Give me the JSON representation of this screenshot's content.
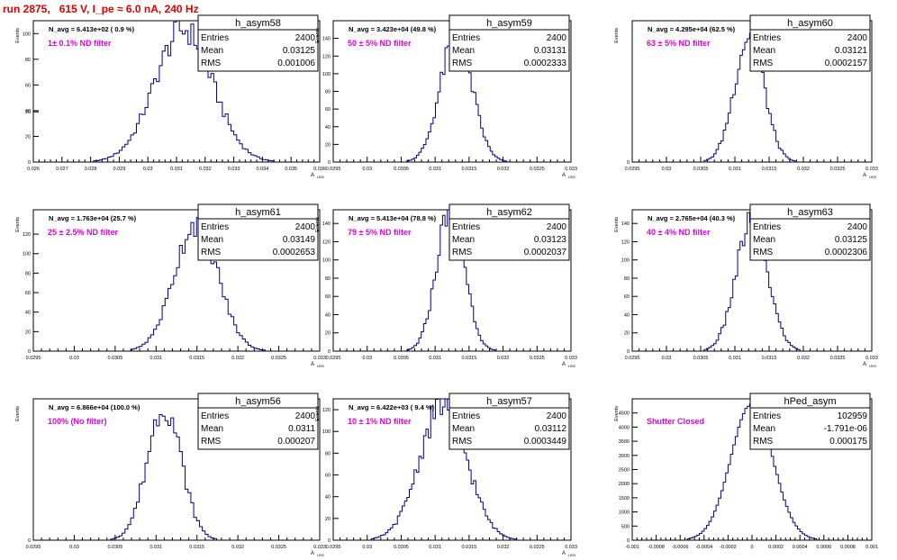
{
  "run_title": "run 2875,   615 V, I_pe ≈ 6.0 nA, 240 Hz",
  "stats_labels": {
    "entries": "Entries",
    "mean": "Mean",
    "rms": "RMS"
  },
  "colors": {
    "run_title": "#e00000",
    "filter_label": "#e000e0",
    "histogram": "#00008b",
    "frame": "#000000"
  },
  "chart_data": [
    {
      "type": "histogram",
      "name": "h_asym58",
      "navg": "N_avg = 6.413e+02 ( 0.9 %)",
      "filter": "1± 0.1% ND filter",
      "entries": "2400",
      "mean": "0.03125",
      "rms": "0.001006",
      "mu": 0.03125,
      "sigma": 0.001006,
      "peak": 103,
      "xlim": [
        0.026,
        0.036
      ],
      "ylim": [
        0,
        110
      ],
      "xlabel": "A",
      "xticks": [
        "0.026",
        "0.027",
        "0.028",
        "0.029",
        "0.03",
        "0.031",
        "0.032",
        "0.033",
        "0.034",
        "0.035",
        "0.036"
      ],
      "yticks": [
        "0",
        "20",
        "40",
        "60",
        "80",
        "100"
      ],
      "ylabel": "Events"
    },
    {
      "type": "histogram",
      "name": "h_asym59",
      "navg": "N_avg = 3.423e+04 (49.8 %)",
      "filter": "50 ± 5% ND filter",
      "entries": "2400",
      "mean": "0.03131",
      "rms": "0.0002333",
      "mu": 0.03131,
      "sigma": 0.0002333,
      "peak": 143,
      "xlim": [
        0.0295,
        0.033
      ],
      "ylim": [
        0,
        160
      ],
      "xlabel": "A",
      "xticks": [
        "0.0295",
        "0.03",
        "0.0305",
        "0.031",
        "0.0315",
        "0.032",
        "0.0325",
        "0.033"
      ],
      "yticks": [
        "0",
        "20",
        "40",
        "60",
        "80",
        "100",
        "120",
        "140"
      ],
      "ylabel": "Events"
    },
    {
      "type": "histogram",
      "name": "h_asym60",
      "navg": "N_avg = 4.295e+04 (62.5 %)",
      "filter": "63 ± 5% ND filter",
      "entries": "2400",
      "mean": "0.03121",
      "rms": "0.0002157",
      "mu": 0.03121,
      "sigma": 0.0002157,
      "peak": 152,
      "xlim": [
        0.0295,
        0.033
      ],
      "ylim": [
        0,
        170
      ],
      "xlabel": "A",
      "xticks": [
        "0.0295",
        "0.03",
        "0.0305",
        "0.031",
        "0.0315",
        "0.032",
        "0.0325",
        "0.033"
      ],
      "yticks": [
        "0",
        "20",
        "40",
        "60",
        "80",
        "100",
        "120",
        "140",
        "160"
      ],
      "ylabel": "Events"
    },
    {
      "type": "histogram",
      "name": "h_asym61",
      "navg": "N_avg = 1.763e+04 (25.7 %)",
      "filter": "25 ± 2.5% ND filter",
      "entries": "2400",
      "mean": "0.03149",
      "rms": "0.0002653",
      "mu": 0.03149,
      "sigma": 0.0002653,
      "peak": 132,
      "xlim": [
        0.0295,
        0.033
      ],
      "ylim": [
        0,
        145
      ],
      "xlabel": "A",
      "xticks": [
        "0.0295",
        "0.03",
        "0.0305",
        "0.031",
        "0.0315",
        "0.032",
        "0.0325",
        "0.033"
      ],
      "yticks": [
        "0",
        "20",
        "40",
        "60",
        "80",
        "100",
        "120"
      ],
      "ylabel": "Events"
    },
    {
      "type": "histogram",
      "name": "h_asym62",
      "navg": "N_avg = 5.413e+04 (78.8 %)",
      "filter": "79 ± 5% ND filter",
      "entries": "2400",
      "mean": "0.03123",
      "rms": "0.0002037",
      "mu": 0.03123,
      "sigma": 0.0002037,
      "peak": 160,
      "xlim": [
        0.0295,
        0.033
      ],
      "ylim": [
        0,
        155
      ],
      "xlabel": "A",
      "xticks": [
        "0.0295",
        "0.03",
        "0.0305",
        "0.031",
        "0.0315",
        "0.032",
        "0.0325",
        "0.033"
      ],
      "yticks": [
        "0",
        "20",
        "40",
        "60",
        "80",
        "100",
        "120",
        "140"
      ],
      "ylabel": "Events"
    },
    {
      "type": "histogram",
      "name": "h_asym63",
      "navg": "N_avg = 2.765e+04 (40.3 %)",
      "filter": "40 ± 4% ND filter",
      "entries": "2400",
      "mean": "0.03125",
      "rms": "0.0002306",
      "mu": 0.03125,
      "sigma": 0.0002306,
      "peak": 142,
      "xlim": [
        0.0295,
        0.033
      ],
      "ylim": [
        0,
        155
      ],
      "xlabel": "A",
      "xticks": [
        "0.0295",
        "0.03",
        "0.0305",
        "0.031",
        "0.0315",
        "0.032",
        "0.0325",
        "0.033"
      ],
      "yticks": [
        "0",
        "20",
        "40",
        "60",
        "80",
        "100",
        "120",
        "140"
      ],
      "ylabel": "Events"
    },
    {
      "type": "histogram",
      "name": "h_asym56",
      "navg": "N_avg = 6.866e+04 (100.0 %)",
      "filter": "100% (No filter)",
      "entries": "2400",
      "mean": "0.0311",
      "rms": "0.000207",
      "mu": 0.0311,
      "sigma": 0.000207,
      "peak": 157,
      "xlim": [
        0.0295,
        0.033
      ],
      "ylim": [
        0,
        165
      ],
      "xlabel": "A",
      "xticks": [
        "0.0295",
        "0.03",
        "0.0305",
        "0.031",
        "0.0315",
        "0.032",
        "0.0325",
        "0.033"
      ],
      "yticks": [
        "0",
        "20",
        "40",
        "60",
        "80",
        "100",
        "120",
        "140",
        "160"
      ],
      "ylabel": "Events"
    },
    {
      "type": "histogram",
      "name": "h_asym57",
      "navg": "N_avg = 6.422e+03 ( 9.4 %)",
      "filter": "10 ± 1% ND filter",
      "entries": "2400",
      "mean": "0.03112",
      "rms": "0.0003449",
      "mu": 0.03112,
      "sigma": 0.0003449,
      "peak": 125,
      "xlim": [
        0.0295,
        0.033
      ],
      "ylim": [
        0,
        130
      ],
      "xlabel": "A",
      "xticks": [
        "0.0295",
        "0.03",
        "0.0305",
        "0.031",
        "0.0315",
        "0.032",
        "0.0325",
        "0.033"
      ],
      "yticks": [
        "0",
        "20",
        "40",
        "60",
        "80",
        "100",
        "120"
      ],
      "ylabel": "Events"
    },
    {
      "type": "histogram",
      "name": "hPed_asym",
      "navg": "",
      "filter": "Shutter Closed",
      "entries": "102959",
      "mean": "-1.791e-06",
      "rms": "0.000175",
      "mu": -1.791e-06,
      "sigma": 0.000175,
      "peak": 4800,
      "xlim": [
        -0.001,
        0.001
      ],
      "ylim": [
        0,
        5000
      ],
      "xlabel": "",
      "xticks": [
        "-0.001",
        "-0.0008",
        "-0.0006",
        "-0.0004",
        "-0.0002",
        "0",
        "0.0002",
        "0.0004",
        "0.0006",
        "0.0008",
        "0.001"
      ],
      "yticks": [
        "0",
        "500",
        "1000",
        "1500",
        "2000",
        "2500",
        "3000",
        "3500",
        "4000",
        "4500"
      ],
      "ylabel": "Events"
    }
  ]
}
